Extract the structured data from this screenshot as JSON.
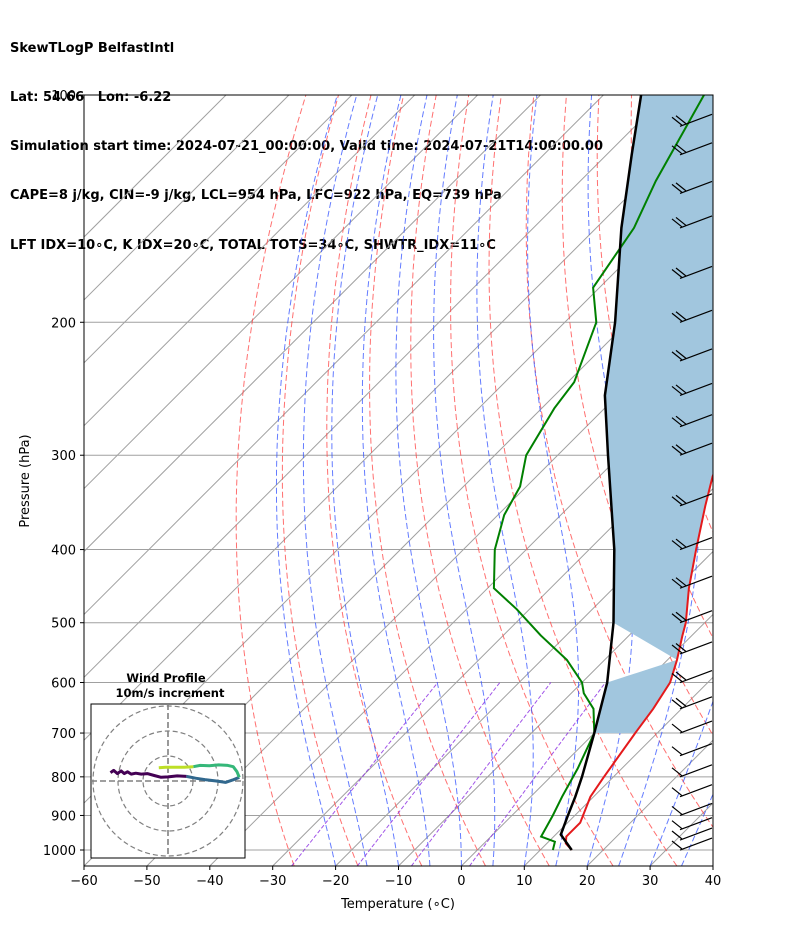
{
  "header": {
    "line1": "SkewTLogP BelfastIntl",
    "line2": "Lat: 54.66   Lon: -6.22",
    "line3": "Simulation start time: 2024-07-21_00:00:00, Valid time: 2024-07-21T14:00:00.00",
    "line4": "CAPE=8 j/kg, CIN=-9 j/kg, LCL=954 hPa, LFC=922 hPa, EQ=739 hPa",
    "line5": "LFT IDX=10∘C, K IDX=20∘C, TOTAL TOTS=34∘C, SHWTR_IDX=11∘C"
  },
  "colors": {
    "temperature": "#e41a1c",
    "dewpoint": "#008000",
    "parcel": "#000000",
    "cape_fill": "#a1c6de",
    "dry_adiabat": "#ff4040",
    "moist_adiabat": "#3050ff",
    "mixing_ratio": "#8a2be2",
    "isotherm": "#a0a0a0"
  },
  "chart_data": [
    {
      "type": "line",
      "title": "",
      "xlabel": "Temperature (∘C)",
      "ylabel": "Pressure (hPa)",
      "xlim": [
        -60,
        40
      ],
      "ylim": [
        1050,
        100
      ],
      "y_scale": "log",
      "skew": true,
      "x_ticks": [
        "−60",
        "−50",
        "−40",
        "−30",
        "−20",
        "−10",
        "0",
        "10",
        "20",
        "30",
        "40"
      ],
      "y_ticks": [
        "100",
        "200",
        "300",
        "400",
        "500",
        "600",
        "700",
        "800",
        "900",
        "1000"
      ],
      "grid": true,
      "series": [
        {
          "role": "temperature",
          "points": [
            [
              1000,
              15
            ],
            [
              980,
              13
            ],
            [
              960,
              12
            ],
            [
              920,
              12
            ],
            [
              850,
              9.5
            ],
            [
              800,
              8.5
            ],
            [
              700,
              6.5
            ],
            [
              650,
              5.5
            ],
            [
              600,
              4
            ],
            [
              560,
              1.5
            ],
            [
              520,
              -1.5
            ],
            [
              500,
              -3
            ],
            [
              450,
              -8
            ],
            [
              400,
              -13
            ],
            [
              350,
              -18.5
            ],
            [
              320,
              -22
            ],
            [
              300,
              -24
            ],
            [
              280,
              -25
            ],
            [
              250,
              -24
            ],
            [
              220,
              -25
            ],
            [
              200,
              -26.5
            ],
            [
              190,
              -28
            ],
            [
              170,
              -30
            ],
            [
              150,
              -33
            ],
            [
              130,
              -37
            ],
            [
              110,
              -42
            ],
            [
              100,
              -45
            ]
          ]
        },
        {
          "role": "dewpoint",
          "points": [
            [
              1000,
              12
            ],
            [
              975,
              11
            ],
            [
              960,
              8
            ],
            [
              900,
              6.5
            ],
            [
              850,
              5
            ],
            [
              780,
              3
            ],
            [
              700,
              0
            ],
            [
              650,
              -4
            ],
            [
              620,
              -8
            ],
            [
              600,
              -10
            ],
            [
              560,
              -16
            ],
            [
              520,
              -24
            ],
            [
              480,
              -32
            ],
            [
              450,
              -39
            ],
            [
              400,
              -45
            ],
            [
              360,
              -49
            ],
            [
              330,
              -51
            ],
            [
              300,
              -55
            ],
            [
              260,
              -58
            ],
            [
              240,
              -59
            ],
            [
              200,
              -65
            ],
            [
              180,
              -71
            ],
            [
              150,
              -74
            ],
            [
              130,
              -78
            ],
            [
              100,
              -84
            ]
          ]
        },
        {
          "role": "parcel",
          "points": [
            [
              1000,
              15
            ],
            [
              954,
              10.8
            ],
            [
              900,
              8.9
            ],
            [
              850,
              7.1
            ],
            [
              800,
              5
            ],
            [
              700,
              0
            ],
            [
              600,
              -6
            ],
            [
              500,
              -14.5
            ],
            [
              400,
              -26
            ],
            [
              300,
              -42
            ],
            [
              250,
              -52
            ],
            [
              200,
              -62
            ],
            [
              150,
              -76
            ],
            [
              120,
              -86
            ],
            [
              100,
              -94
            ]
          ]
        }
      ],
      "wind_barbs": [
        {
          "p": 1000,
          "label": "barb"
        },
        {
          "p": 970,
          "label": "barb"
        },
        {
          "p": 940,
          "label": "barb"
        },
        {
          "p": 900,
          "label": "barb"
        },
        {
          "p": 850,
          "label": "barb"
        },
        {
          "p": 800,
          "label": "barb"
        },
        {
          "p": 750,
          "label": "barb"
        },
        {
          "p": 700,
          "label": "barb"
        },
        {
          "p": 650,
          "label": "barb"
        },
        {
          "p": 600,
          "label": "barb"
        },
        {
          "p": 550,
          "label": "barb"
        },
        {
          "p": 500,
          "label": "barb"
        },
        {
          "p": 450,
          "label": "barb"
        },
        {
          "p": 400,
          "label": "barb"
        },
        {
          "p": 350,
          "label": "barb"
        },
        {
          "p": 300,
          "label": "barb"
        },
        {
          "p": 275,
          "label": "barb"
        },
        {
          "p": 250,
          "label": "barb"
        },
        {
          "p": 225,
          "label": "barb"
        },
        {
          "p": 200,
          "label": "barb"
        },
        {
          "p": 175,
          "label": "barb"
        },
        {
          "p": 150,
          "label": "barb"
        },
        {
          "p": 135,
          "label": "barb"
        },
        {
          "p": 120,
          "label": "barb"
        },
        {
          "p": 110,
          "label": "barb"
        }
      ]
    },
    {
      "type": "line",
      "title": "Wind Profile",
      "subtitle": "10m/s increment",
      "series": [
        {
          "name": "",
          "points": [
            [
              -12.5,
              1.8
            ],
            [
              -11.8,
              2.3
            ],
            [
              -11.0,
              1.6
            ],
            [
              -10.2,
              2.2
            ],
            [
              -9.5,
              1.6
            ],
            [
              -8.8,
              2.0
            ],
            [
              -8.0,
              1.5
            ],
            [
              -7.0,
              1.7
            ],
            [
              -5.8,
              1.5
            ],
            [
              -4.5,
              1.6
            ],
            [
              -3.0,
              1.2
            ],
            [
              -1.5,
              0.8
            ],
            [
              0.0,
              0.9
            ],
            [
              2.0,
              1.1
            ],
            [
              4.0,
              1.0
            ]
          ]
        },
        {
          "name": "",
          "points": [
            [
              4.0,
              1.0
            ],
            [
              6.0,
              0.6
            ],
            [
              8.0,
              0.3
            ],
            [
              10.5,
              0.0
            ],
            [
              12.5,
              -0.3
            ],
            [
              14.0,
              0.2
            ],
            [
              15.5,
              0.8
            ]
          ]
        },
        {
          "name": "",
          "points": [
            [
              15.5,
              0.8
            ],
            [
              15.0,
              2.0
            ],
            [
              14.2,
              3.1
            ],
            [
              13.0,
              3.4
            ],
            [
              11.0,
              3.5
            ],
            [
              9.0,
              3.3
            ],
            [
              7.0,
              3.4
            ],
            [
              5.5,
              3.1
            ]
          ]
        },
        {
          "name": "",
          "points": [
            [
              5.5,
              3.1
            ],
            [
              3.5,
              3.0
            ],
            [
              1.5,
              3.0
            ],
            [
              -0.5,
              3.0
            ],
            [
              -2.0,
              2.9
            ]
          ]
        }
      ]
    }
  ]
}
